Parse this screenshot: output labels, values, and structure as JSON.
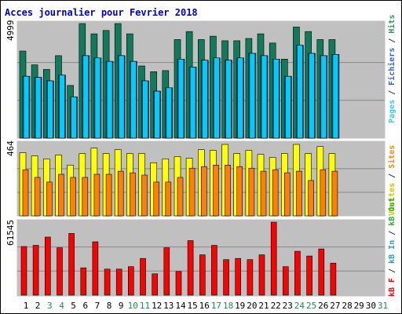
{
  "chart_data": {
    "title": "Acces journalier pour Fevrier 2018",
    "type": "bar",
    "categories": [
      "1",
      "2",
      "3",
      "4",
      "5",
      "6",
      "7",
      "8",
      "9",
      "10",
      "11",
      "12",
      "13",
      "14",
      "15",
      "16",
      "17",
      "18",
      "19",
      "20",
      "21",
      "22",
      "23",
      "24",
      "25",
      "26",
      "27",
      "28",
      "29",
      "30",
      "31"
    ],
    "weekend_days": [
      "3",
      "4",
      "10",
      "11",
      "17",
      "18",
      "24",
      "25",
      "31"
    ],
    "panels": [
      {
        "id": "traffic",
        "max_label": "4999",
        "ymax": 5000,
        "side_label": [
          {
            "text": "Pages",
            "color": "#33ccff"
          },
          {
            "text": " / ",
            "color": "#333333"
          },
          {
            "text": "Fichiers",
            "color": "#3366cc"
          },
          {
            "text": " / ",
            "color": "#333333"
          },
          {
            "text": "Hits",
            "color": "#339966"
          }
        ],
        "series": [
          {
            "name": "Hits",
            "color": "#117a5a",
            "values": [
              3800,
              3200,
              3000,
              3600,
              2300,
              4999,
              4550,
              4700,
              4999,
              4550,
              3150,
              2900,
              2950,
              4300,
              4650,
              4300,
              4450,
              4250,
              4250,
              4350,
              4550,
              4150,
              3450,
              4850,
              4650,
              4300,
              4300,
              0,
              0,
              0,
              0
            ]
          },
          {
            "name": "Fichiers",
            "color": "#1c7ed6",
            "values": [
              2700,
              2650,
              2500,
              2750,
              1800,
              3600,
              3500,
              3350,
              3600,
              3350,
              2500,
              2050,
              2200,
              3450,
              3100,
              3400,
              3500,
              3400,
              3500,
              3700,
              3600,
              3450,
              2700,
              4050,
              3700,
              3600,
              3650,
              0,
              0,
              0,
              0
            ]
          },
          {
            "name": "Pages",
            "color": "#00ccff",
            "values": [
              2700,
              2650,
              2500,
              2750,
              1800,
              3600,
              3500,
              3350,
              3600,
              3350,
              2500,
              2050,
              2200,
              3450,
              3100,
              3400,
              3500,
              3400,
              3500,
              3700,
              3600,
              3450,
              2700,
              4050,
              3700,
              3600,
              3650,
              0,
              0,
              0,
              0
            ]
          }
        ]
      },
      {
        "id": "visits",
        "max_label": "464",
        "ymax": 464,
        "side_label": [
          {
            "text": "Visites",
            "color": "#cccc00"
          },
          {
            "text": " / ",
            "color": "#333333"
          },
          {
            "text": "Sites",
            "color": "#ff8800"
          }
        ],
        "series": [
          {
            "name": "Visites",
            "color": "#ffff00",
            "values": [
              410,
              390,
              370,
              395,
              330,
              405,
              440,
              405,
              430,
              405,
              405,
              345,
              370,
              385,
              375,
              430,
              425,
              464,
              405,
              425,
              400,
              380,
              405,
              464,
              405,
              450,
              405,
              0,
              0,
              0,
              0
            ]
          },
          {
            "name": "Sites",
            "color": "#ff8000",
            "values": [
              300,
              250,
              220,
              270,
              250,
              250,
              270,
              270,
              290,
              280,
              265,
              220,
              220,
              250,
              310,
              320,
              330,
              330,
              320,
              310,
              290,
              300,
              280,
              290,
              230,
              300,
              290,
              0,
              0,
              0,
              0
            ]
          }
        ]
      },
      {
        "id": "kbytes",
        "max_label": "61545",
        "ymax": 61545,
        "side_label": [
          {
            "text": "kB F",
            "color": "#ff0000"
          },
          {
            "text": " / ",
            "color": "#333333"
          },
          {
            "text": "kB In",
            "color": "#3399cc"
          },
          {
            "text": " / ",
            "color": "#333333"
          },
          {
            "text": "kB Out",
            "color": "#33aa33"
          }
        ],
        "series": [
          {
            "name": "kB F",
            "color": "#ff0000",
            "values": [
              41000,
              42000,
              49000,
              40000,
              52000,
              23000,
              45000,
              22000,
              22000,
              24000,
              31000,
              18000,
              40000,
              20000,
              46000,
              34000,
              42000,
              30000,
              31000,
              30000,
              34000,
              61545,
              24000,
              37000,
              33000,
              39000,
              27000,
              0,
              0,
              0,
              0
            ]
          }
        ]
      }
    ]
  }
}
